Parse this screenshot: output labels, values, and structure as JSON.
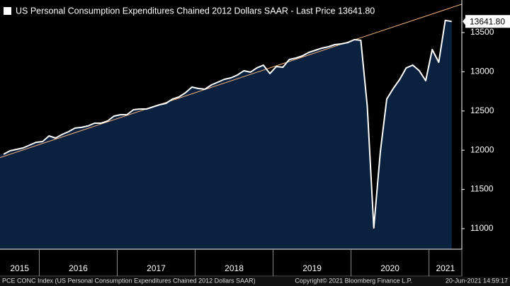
{
  "chart_data": {
    "type": "area",
    "title": "US Personal Consumption Expenditures Chained 2012 Dollars SAAR - Last Price 13641.80",
    "x_labels": [
      "2015",
      "2016",
      "2017",
      "2018",
      "2019",
      "2020",
      "2021"
    ],
    "series": [
      {
        "name": "PCE CONC Index",
        "color": "#ffffff",
        "fill": "#0a2240",
        "values": [
          11948,
          11993,
          12011,
          12029,
          12065,
          12101,
          12110,
          12182,
          12155,
          12200,
          12236,
          12282,
          12291,
          12309,
          12345,
          12345,
          12372,
          12435,
          12453,
          12453,
          12516,
          12525,
          12525,
          12552,
          12579,
          12597,
          12652,
          12679,
          12733,
          12805,
          12787,
          12778,
          12832,
          12868,
          12904,
          12922,
          12958,
          13013,
          12995,
          13049,
          13085,
          12977,
          13067,
          13058,
          13157,
          13175,
          13202,
          13247,
          13274,
          13301,
          13319,
          13346,
          13355,
          13373,
          13410,
          13401,
          12561,
          11009,
          11975,
          12652,
          12787,
          12904,
          13049,
          13085,
          13013,
          12886,
          13283,
          13121,
          13655,
          13641.8
        ],
        "value_labels": {
          "69": "13641.80"
        }
      }
    ],
    "trendline": {
      "color": "#f3b27a",
      "values": [
        11906,
        13862
      ]
    },
    "ylim": [
      10738,
      13915
    ],
    "yticks": [
      11000,
      11500,
      12000,
      12500,
      13000,
      13500
    ],
    "footer": {
      "source": "PCE CONC Index (US Personal Consumption Expenditures Chained 2012 Dollars SAAR)",
      "copyright": "Copyright© 2021 Bloomberg Finance L.P.",
      "timestamp": "20-Jun-2021 14:59:17"
    }
  }
}
